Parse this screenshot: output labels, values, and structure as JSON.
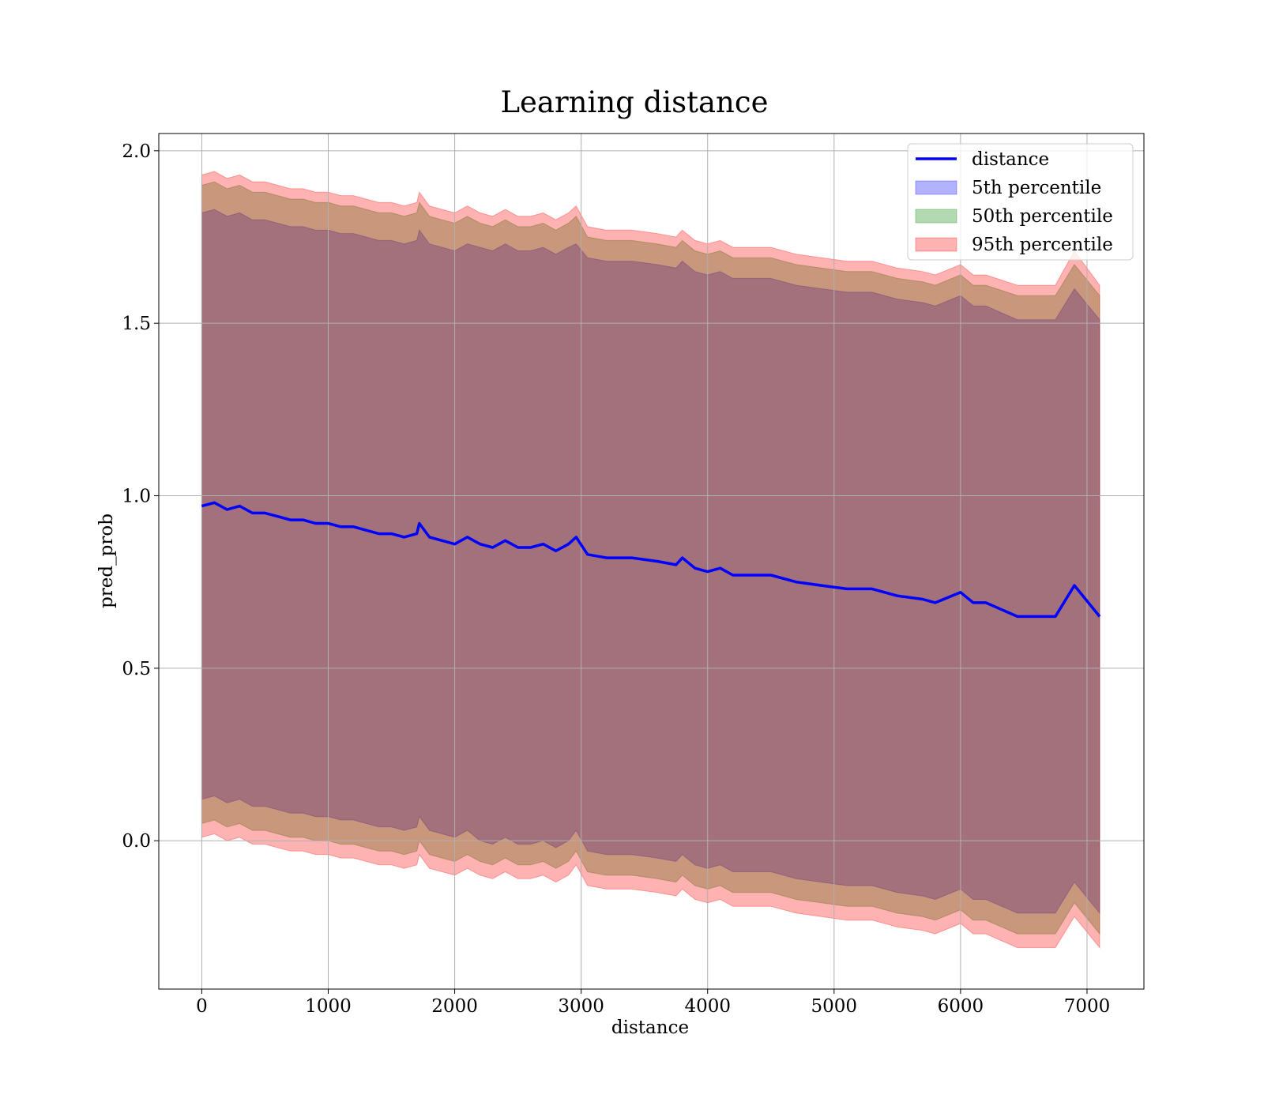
{
  "chart_data": {
    "type": "area",
    "title": "Learning distance",
    "xlabel": "distance",
    "ylabel": "pred_prob",
    "xlim": [
      -340,
      7450
    ],
    "ylim": [
      -0.43,
      2.05
    ],
    "xticks": [
      0,
      1000,
      2000,
      3000,
      4000,
      5000,
      6000,
      7000
    ],
    "yticks": [
      0.0,
      0.5,
      1.0,
      1.5,
      2.0
    ],
    "xtick_labels": [
      "0",
      "1000",
      "2000",
      "3000",
      "4000",
      "5000",
      "6000",
      "7000"
    ],
    "ytick_labels": [
      "0.0",
      "0.5",
      "1.0",
      "1.5",
      "2.0"
    ],
    "grid": true,
    "legend_position": "top-right",
    "x": [
      0,
      100,
      200,
      300,
      400,
      500,
      600,
      700,
      800,
      900,
      1000,
      1100,
      1200,
      1300,
      1400,
      1500,
      1600,
      1700,
      1720,
      1800,
      1900,
      2000,
      2100,
      2200,
      2300,
      2400,
      2500,
      2600,
      2700,
      2800,
      2900,
      2960,
      3050,
      3200,
      3400,
      3600,
      3750,
      3800,
      3900,
      4000,
      4100,
      4200,
      4400,
      4500,
      4700,
      4900,
      5100,
      5300,
      5500,
      5700,
      5800,
      6000,
      6100,
      6200,
      6450,
      6750,
      6900,
      7100
    ],
    "series": [
      {
        "name": "distance",
        "kind": "line",
        "color": "#0000ff",
        "values": [
          0.97,
          0.98,
          0.96,
          0.97,
          0.95,
          0.95,
          0.94,
          0.93,
          0.93,
          0.92,
          0.92,
          0.91,
          0.91,
          0.9,
          0.89,
          0.89,
          0.88,
          0.89,
          0.92,
          0.88,
          0.87,
          0.86,
          0.88,
          0.86,
          0.85,
          0.87,
          0.85,
          0.85,
          0.86,
          0.84,
          0.86,
          0.88,
          0.83,
          0.82,
          0.82,
          0.81,
          0.8,
          0.82,
          0.79,
          0.78,
          0.79,
          0.77,
          0.77,
          0.77,
          0.75,
          0.74,
          0.73,
          0.73,
          0.71,
          0.7,
          0.69,
          0.72,
          0.69,
          0.69,
          0.65,
          0.65,
          0.74,
          0.65
        ]
      },
      {
        "name": "5th percentile",
        "kind": "band",
        "color": "#0000ff",
        "opacity": 0.3,
        "lower": [
          0.12,
          0.13,
          0.11,
          0.12,
          0.1,
          0.1,
          0.09,
          0.08,
          0.08,
          0.07,
          0.07,
          0.06,
          0.06,
          0.05,
          0.04,
          0.04,
          0.03,
          0.04,
          0.07,
          0.03,
          0.02,
          0.01,
          0.03,
          0.0,
          -0.01,
          0.01,
          -0.01,
          -0.01,
          0.0,
          -0.02,
          0.0,
          0.03,
          -0.03,
          -0.04,
          -0.04,
          -0.05,
          -0.06,
          -0.04,
          -0.07,
          -0.08,
          -0.07,
          -0.09,
          -0.09,
          -0.09,
          -0.11,
          -0.12,
          -0.13,
          -0.13,
          -0.15,
          -0.16,
          -0.17,
          -0.14,
          -0.17,
          -0.17,
          -0.21,
          -0.21,
          -0.12,
          -0.21
        ],
        "upper": [
          1.82,
          1.83,
          1.81,
          1.82,
          1.8,
          1.8,
          1.79,
          1.78,
          1.78,
          1.77,
          1.77,
          1.76,
          1.76,
          1.75,
          1.74,
          1.74,
          1.73,
          1.74,
          1.77,
          1.73,
          1.72,
          1.71,
          1.73,
          1.72,
          1.71,
          1.73,
          1.71,
          1.71,
          1.72,
          1.7,
          1.72,
          1.73,
          1.69,
          1.68,
          1.68,
          1.67,
          1.66,
          1.68,
          1.65,
          1.64,
          1.65,
          1.63,
          1.63,
          1.63,
          1.61,
          1.6,
          1.59,
          1.59,
          1.57,
          1.56,
          1.55,
          1.58,
          1.55,
          1.55,
          1.51,
          1.51,
          1.6,
          1.51
        ]
      },
      {
        "name": "50th percentile",
        "kind": "band",
        "color": "#008000",
        "opacity": 0.3,
        "lower": [
          0.05,
          0.06,
          0.04,
          0.05,
          0.03,
          0.03,
          0.02,
          0.01,
          0.01,
          0.0,
          0.0,
          -0.01,
          -0.01,
          -0.02,
          -0.03,
          -0.03,
          -0.04,
          -0.03,
          0.0,
          -0.04,
          -0.05,
          -0.06,
          -0.04,
          -0.06,
          -0.07,
          -0.05,
          -0.07,
          -0.07,
          -0.06,
          -0.08,
          -0.06,
          -0.03,
          -0.09,
          -0.1,
          -0.1,
          -0.11,
          -0.12,
          -0.1,
          -0.13,
          -0.14,
          -0.13,
          -0.15,
          -0.15,
          -0.15,
          -0.17,
          -0.18,
          -0.19,
          -0.19,
          -0.21,
          -0.22,
          -0.23,
          -0.2,
          -0.23,
          -0.23,
          -0.27,
          -0.27,
          -0.18,
          -0.27
        ],
        "upper": [
          1.9,
          1.91,
          1.89,
          1.9,
          1.88,
          1.88,
          1.87,
          1.86,
          1.86,
          1.85,
          1.85,
          1.84,
          1.84,
          1.83,
          1.82,
          1.82,
          1.81,
          1.82,
          1.85,
          1.81,
          1.8,
          1.79,
          1.81,
          1.79,
          1.78,
          1.8,
          1.78,
          1.78,
          1.79,
          1.77,
          1.79,
          1.81,
          1.75,
          1.74,
          1.74,
          1.73,
          1.72,
          1.74,
          1.71,
          1.7,
          1.71,
          1.69,
          1.69,
          1.69,
          1.67,
          1.66,
          1.65,
          1.65,
          1.63,
          1.62,
          1.61,
          1.64,
          1.61,
          1.61,
          1.58,
          1.58,
          1.67,
          1.58
        ]
      },
      {
        "name": "95th percentile",
        "kind": "band",
        "color": "#ff0000",
        "opacity": 0.3,
        "lower": [
          0.01,
          0.02,
          0.0,
          0.01,
          -0.01,
          -0.01,
          -0.02,
          -0.03,
          -0.03,
          -0.04,
          -0.04,
          -0.05,
          -0.05,
          -0.06,
          -0.07,
          -0.07,
          -0.08,
          -0.07,
          -0.04,
          -0.08,
          -0.09,
          -0.1,
          -0.08,
          -0.1,
          -0.11,
          -0.09,
          -0.11,
          -0.11,
          -0.1,
          -0.12,
          -0.1,
          -0.07,
          -0.13,
          -0.14,
          -0.14,
          -0.15,
          -0.16,
          -0.14,
          -0.17,
          -0.18,
          -0.17,
          -0.19,
          -0.19,
          -0.19,
          -0.21,
          -0.22,
          -0.23,
          -0.23,
          -0.25,
          -0.26,
          -0.27,
          -0.24,
          -0.27,
          -0.27,
          -0.31,
          -0.31,
          -0.22,
          -0.31
        ],
        "upper": [
          1.93,
          1.94,
          1.92,
          1.93,
          1.91,
          1.91,
          1.9,
          1.89,
          1.89,
          1.88,
          1.88,
          1.87,
          1.87,
          1.86,
          1.85,
          1.85,
          1.84,
          1.85,
          1.88,
          1.84,
          1.83,
          1.82,
          1.84,
          1.82,
          1.81,
          1.83,
          1.81,
          1.81,
          1.82,
          1.8,
          1.82,
          1.84,
          1.78,
          1.77,
          1.77,
          1.76,
          1.75,
          1.77,
          1.74,
          1.73,
          1.74,
          1.72,
          1.72,
          1.72,
          1.7,
          1.69,
          1.68,
          1.68,
          1.66,
          1.65,
          1.64,
          1.67,
          1.64,
          1.64,
          1.61,
          1.61,
          1.71,
          1.61
        ]
      }
    ]
  },
  "legend": {
    "items": [
      {
        "label": "distance",
        "kind": "line",
        "color": "#0000ff"
      },
      {
        "label": "5th percentile",
        "kind": "patch",
        "color": "#0000ff"
      },
      {
        "label": "50th percentile",
        "kind": "patch",
        "color": "#008000"
      },
      {
        "label": "95th percentile",
        "kind": "patch",
        "color": "#ff0000"
      }
    ]
  }
}
